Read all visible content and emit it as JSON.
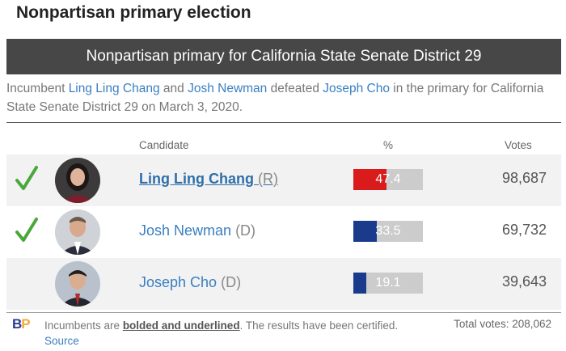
{
  "title": "Nonpartisan primary election",
  "banner": "Nonpartisan primary for California State Senate District 29",
  "summary": {
    "prefix": "Incumbent ",
    "name1": "Ling Ling Chang",
    "mid1": " and ",
    "name2": "Josh Newman",
    "mid2": " defeated ",
    "name3": "Joseph Cho",
    "suffix": " in the primary for California State Senate District 29 on March 3, 2020."
  },
  "columns": {
    "candidate": "Candidate",
    "percent": "%",
    "votes": "Votes"
  },
  "candidates": [
    {
      "name": "Ling Ling Chang",
      "party": "(R)",
      "percent": 47.4,
      "percent_label": "47.4",
      "votes": "98,687",
      "winner": true,
      "incumbent": true,
      "bar_color": "#d91b1b"
    },
    {
      "name": "Josh Newman",
      "party": "(D)",
      "percent": 33.5,
      "percent_label": "33.5",
      "votes": "69,732",
      "winner": true,
      "incumbent": false,
      "bar_color": "#1a3a8c"
    },
    {
      "name": "Joseph Cho",
      "party": "(D)",
      "percent": 19.1,
      "percent_label": "19.1",
      "votes": "39,643",
      "winner": false,
      "incumbent": false,
      "bar_color": "#1a3a8c"
    }
  ],
  "footer": {
    "logo_b": "B",
    "logo_p": "P",
    "note_prefix": "Incumbents are ",
    "note_strong": "bolded and underlined",
    "note_suffix": ". The results have been certified. ",
    "source_link": "Source",
    "total": "Total votes: 208,062"
  },
  "colors": {
    "check": "#4aa83a",
    "banner_bg": "#474747",
    "link": "#3a7fc1"
  }
}
